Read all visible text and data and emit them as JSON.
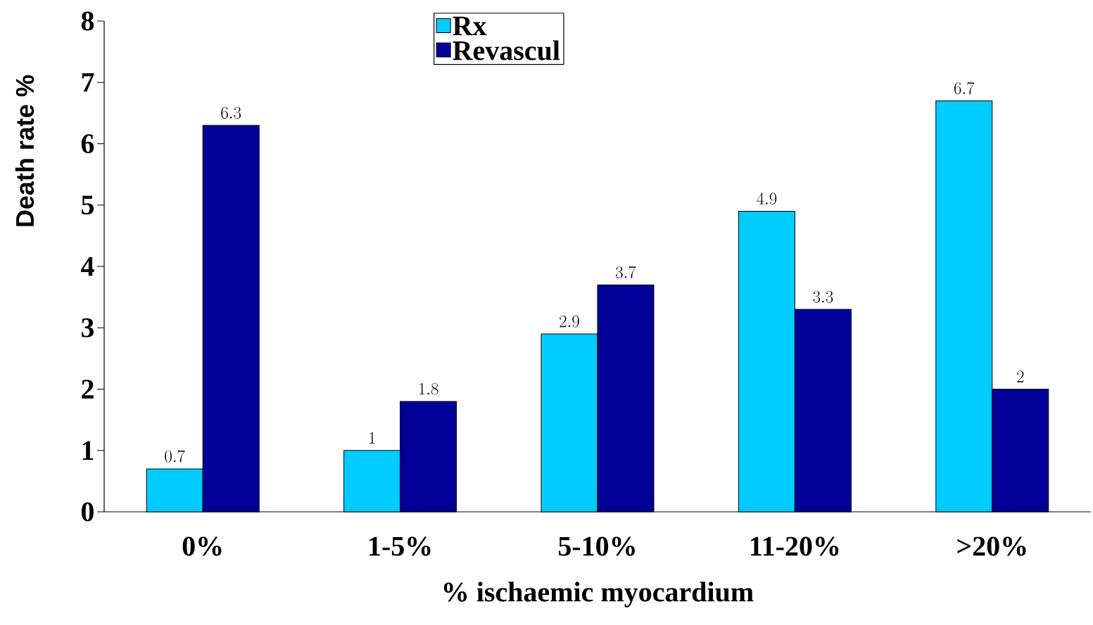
{
  "chart_data": {
    "type": "bar",
    "xlabel": "% ischaemic myocardium",
    "ylabel": "Death rate %",
    "categories": [
      "0%",
      "1-5%",
      "5-10%",
      "11-20%",
      ">20%"
    ],
    "series": [
      {
        "name": "Rx",
        "color": "#00ccff",
        "values": [
          0.7,
          1,
          2.9,
          4.9,
          6.7
        ]
      },
      {
        "name": "Revascul",
        "color": "#000099",
        "values": [
          6.3,
          1.8,
          3.7,
          3.3,
          2
        ]
      }
    ],
    "ylim": [
      0,
      8
    ],
    "yticks": [
      0,
      1,
      2,
      3,
      4,
      5,
      6,
      7,
      8
    ],
    "data_labels": true,
    "legend": "top"
  }
}
